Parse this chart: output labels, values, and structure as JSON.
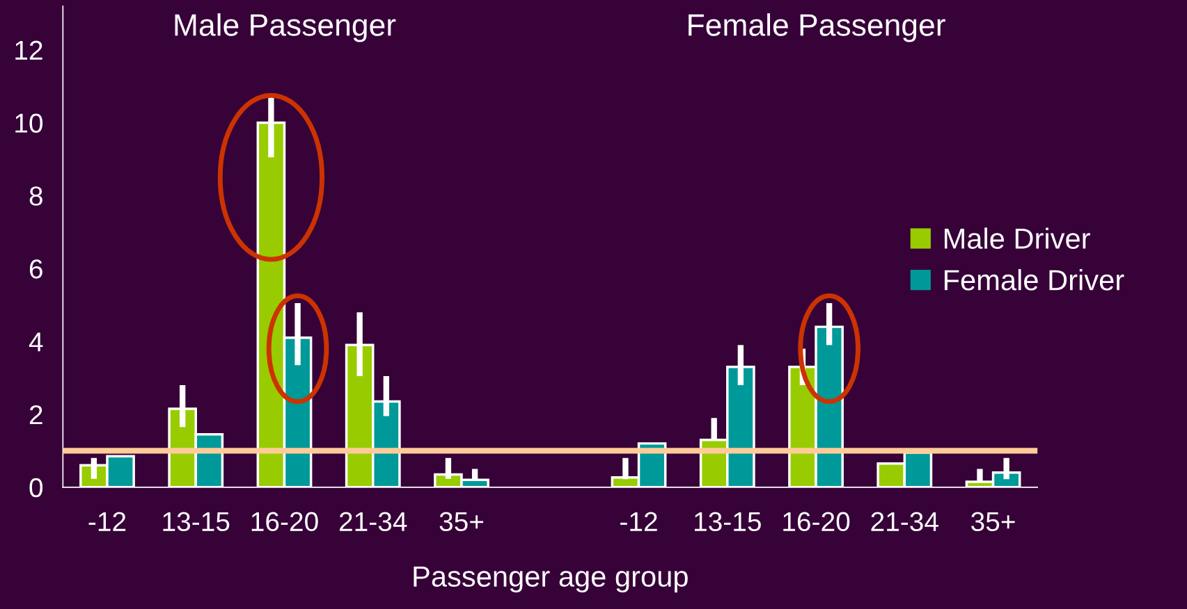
{
  "chart_data": {
    "type": "bar",
    "xlabel": "Passenger age group",
    "annotations": [
      "Male Passenger",
      "Female Passenger"
    ],
    "categories": [
      "-12",
      "13-15",
      "16-20",
      "21-34",
      "35+",
      null,
      "-12",
      "13-15",
      "16-20",
      "21-34",
      "35+"
    ],
    "series": [
      {
        "name": "Male Driver",
        "color": "#99cc00",
        "values": [
          0.6,
          2.15,
          10.0,
          3.9,
          0.35,
          null,
          0.27,
          1.3,
          3.3,
          0.65,
          0.15
        ],
        "errors": [
          [
            0.23,
            0.8
          ],
          [
            1.65,
            2.8
          ],
          [
            9.05,
            10.8
          ],
          [
            3.05,
            4.8
          ],
          [
            0.23,
            0.8
          ],
          null,
          [
            0.22,
            0.8
          ],
          [
            1.3,
            1.9
          ],
          [
            2.8,
            3.8
          ],
          null,
          [
            0.15,
            0.5
          ]
        ]
      },
      {
        "name": "Female Driver",
        "color": "#009999",
        "values": [
          0.85,
          1.45,
          4.1,
          2.35,
          0.2,
          null,
          1.2,
          3.3,
          4.4,
          0.95,
          0.4
        ],
        "errors": [
          null,
          null,
          [
            3.35,
            5.05
          ],
          [
            1.95,
            3.05
          ],
          [
            0.2,
            0.5
          ],
          null,
          null,
          [
            2.8,
            3.9
          ],
          [
            3.9,
            5.05
          ],
          null,
          [
            0.22,
            0.8
          ]
        ]
      }
    ],
    "ylim": [
      0,
      13.2
    ],
    "yticks": [
      0,
      2,
      4,
      6,
      8,
      10,
      12
    ],
    "ref_lines": [
      {
        "axis": "y",
        "value": 1,
        "color": "#ffcc99"
      }
    ],
    "legend": "right",
    "grid": false
  }
}
